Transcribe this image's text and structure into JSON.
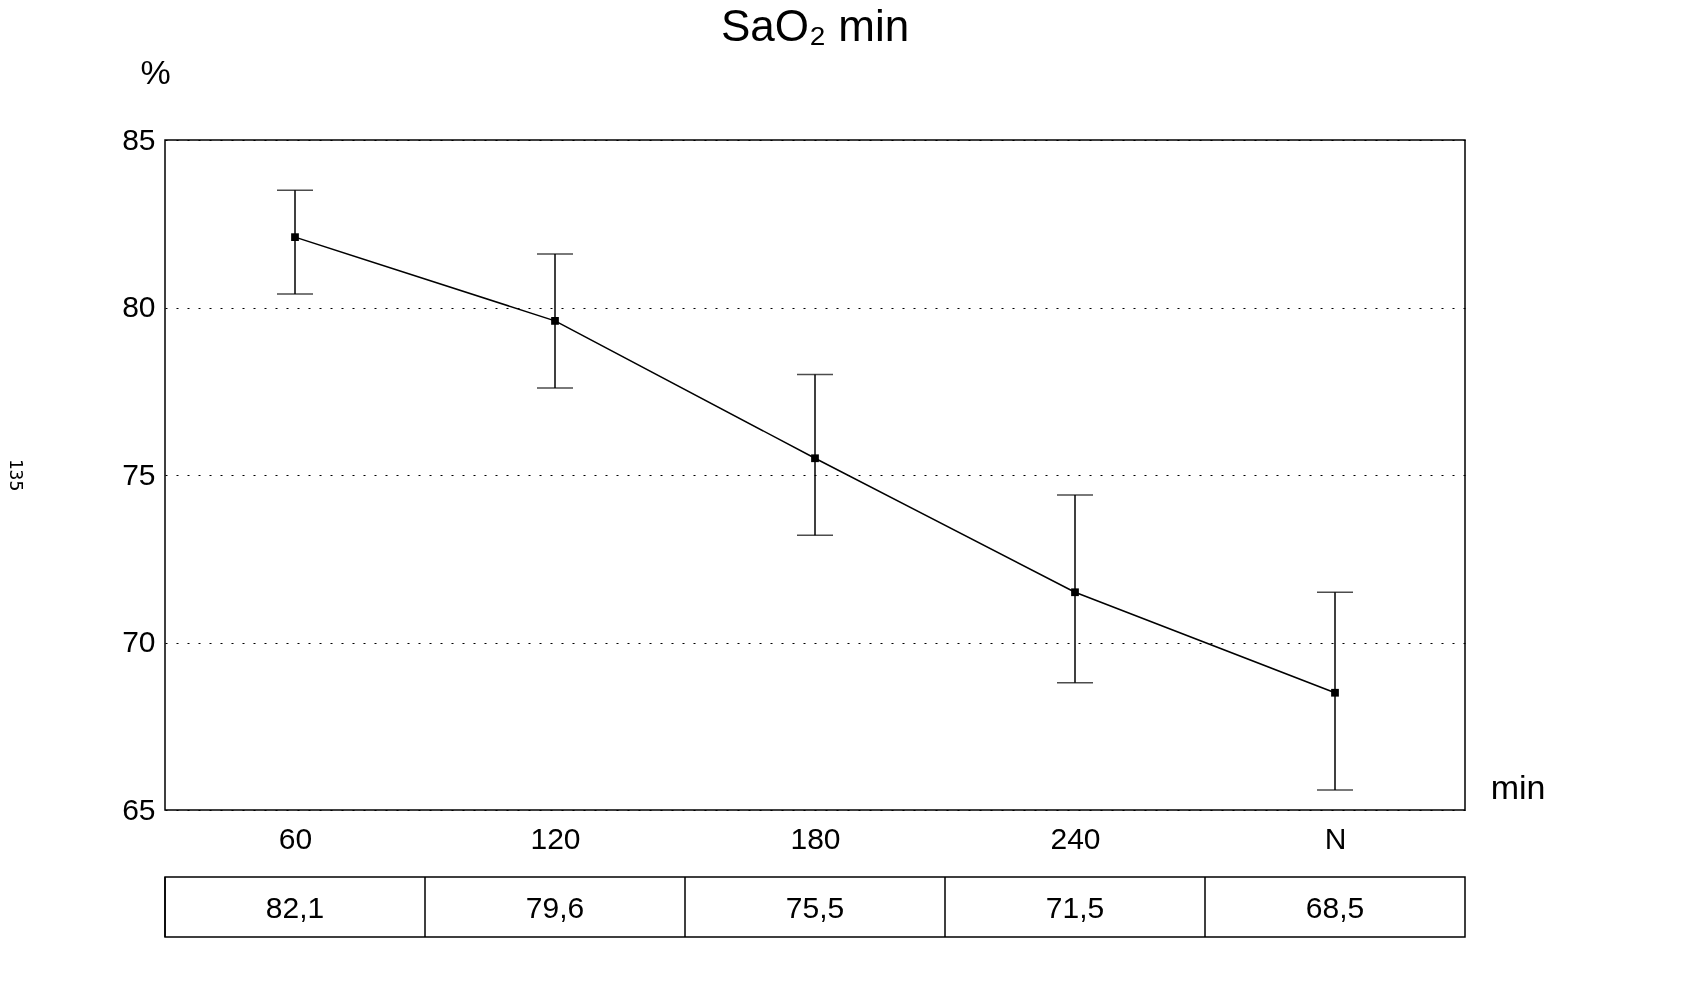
{
  "chart_data": {
    "type": "line",
    "title": "SaO₂  min",
    "ylabel": "%",
    "xlabel": "min",
    "categories": [
      "60",
      "120",
      "180",
      "240",
      "N"
    ],
    "series": [
      {
        "color": "#000000",
        "values": [
          82.1,
          79.6,
          75.5,
          71.5,
          68.5
        ],
        "value_labels": [
          "82,1",
          "79,6",
          "75,5",
          "71,5",
          "68,5"
        ],
        "errors": [
          [
            80.4,
            83.5
          ],
          [
            77.6,
            81.6
          ],
          [
            73.2,
            78.0
          ],
          [
            68.8,
            74.4
          ],
          [
            65.6,
            71.5
          ]
        ]
      }
    ],
    "ylim": [
      65,
      85
    ],
    "yticks": [
      65,
      70,
      75,
      80,
      85
    ],
    "grid": "y",
    "marker": "square",
    "line_style": "solid",
    "annotations": [
      "135"
    ]
  }
}
